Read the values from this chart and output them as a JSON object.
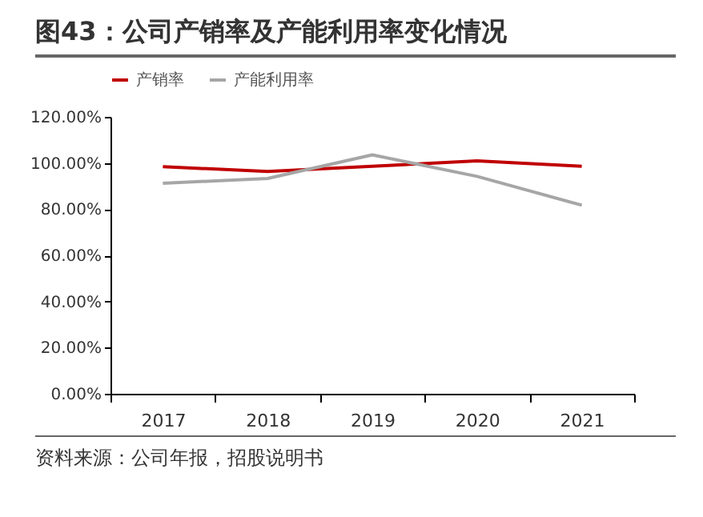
{
  "chart_data": {
    "type": "line",
    "title": "图43：公司产销率及产能利用率变化情况",
    "categories": [
      "2017",
      "2018",
      "2019",
      "2020",
      "2021"
    ],
    "series": [
      {
        "name": "产销率",
        "color": "#c00000",
        "values": [
          98.4,
          96.3,
          98.6,
          100.9,
          98.6
        ]
      },
      {
        "name": "产能利用率",
        "color": "#a6a6a6",
        "values": [
          91.2,
          93.3,
          103.5,
          94.2,
          81.7
        ]
      }
    ],
    "ylim": [
      0,
      120
    ],
    "yticks": [
      {
        "value": 0,
        "label": "0.00%"
      },
      {
        "value": 20,
        "label": "20.00%"
      },
      {
        "value": 40,
        "label": "40.00%"
      },
      {
        "value": 60,
        "label": "60.00%"
      },
      {
        "value": 80,
        "label": "80.00%"
      },
      {
        "value": 100,
        "label": "100.00%"
      },
      {
        "value": 120,
        "label": "120.00%"
      }
    ],
    "grid": false,
    "legend": "top",
    "annotations": [
      "资料来源：公司年报，招股说明书"
    ]
  }
}
